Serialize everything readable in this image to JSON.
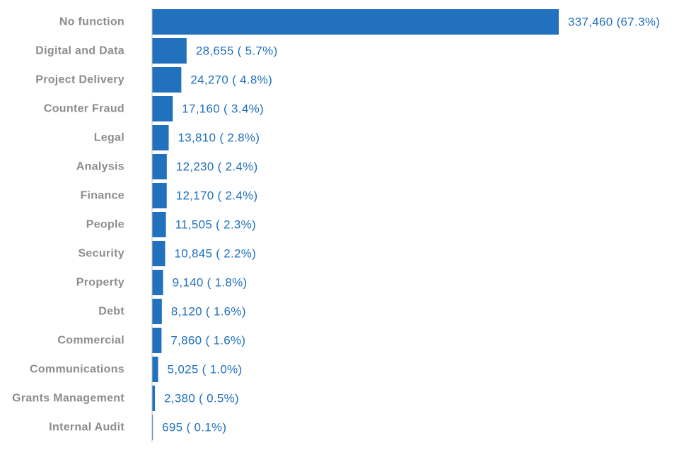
{
  "chart_data": {
    "type": "bar",
    "orientation": "horizontal",
    "title": "",
    "xlabel": "",
    "ylabel": "",
    "xlim": [
      0,
      337460
    ],
    "grid": false,
    "legend": "none",
    "bar_color": "#2171be",
    "label_color": "#2171be",
    "category_label_color": "#8c8c8c",
    "categories": [
      "No function",
      "Digital and Data",
      "Project Delivery",
      "Counter Fraud",
      "Legal",
      "Analysis",
      "Finance",
      "People",
      "Security",
      "Property",
      "Debt",
      "Commercial",
      "Communications",
      "Grants Management",
      "Internal Audit"
    ],
    "values": [
      337460,
      28655,
      24270,
      17160,
      13810,
      12230,
      12170,
      11505,
      10845,
      9140,
      8120,
      7860,
      5025,
      2380,
      695
    ],
    "data_labels": [
      "337,460 (67.3%)",
      "28,655 ( 5.7%)",
      "24,270 ( 4.8%)",
      "17,160 ( 3.4%)",
      "13,810 ( 2.8%)",
      "12,230 ( 2.4%)",
      "12,170 ( 2.4%)",
      "11,505 ( 2.3%)",
      "10,845 ( 2.2%)",
      "9,140 ( 1.8%)",
      "8,120 ( 1.6%)",
      "7,860 ( 1.6%)",
      "5,025 ( 1.0%)",
      "2,380 ( 0.5%)",
      "695 ( 0.1%)"
    ]
  }
}
